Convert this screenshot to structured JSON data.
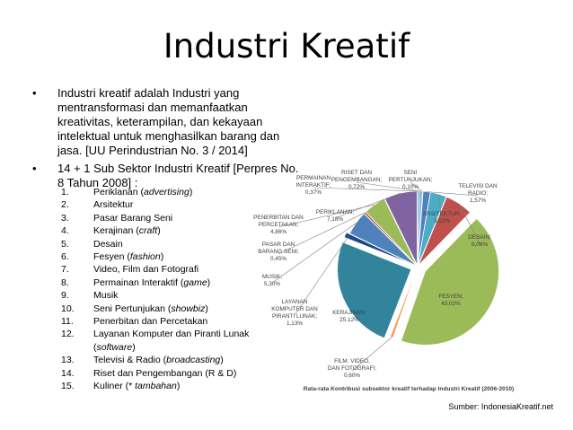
{
  "slide": {
    "title": "Industri Kreatif",
    "bullet1": "Industri kreatif adalah Industri yang mentransformasi dan memanfaatkan kreativitas, keterampilan, dan kekayaan intelektual untuk menghasilkan barang dan jasa. [UU Perindustrian No. 3 / 2014]",
    "bullet2": "14 + 1 Sub Sektor Industri Kreatif [Perpres No. 8 Tahun 2008] :",
    "bullet_symbol": "•",
    "list": [
      {
        "num": "1.",
        "text": "Periklanan (",
        "em": "advertising",
        "tail": ")"
      },
      {
        "num": "2.",
        "text": "Arsitektur",
        "em": "",
        "tail": ""
      },
      {
        "num": "3.",
        "text": "Pasar Barang Seni",
        "em": "",
        "tail": ""
      },
      {
        "num": "4.",
        "text": "Kerajinan (",
        "em": "craft",
        "tail": ")"
      },
      {
        "num": "5.",
        "text": "Desain",
        "em": "",
        "tail": ""
      },
      {
        "num": "6.",
        "text": "Fesyen (",
        "em": "fashion",
        "tail": ")"
      },
      {
        "num": "7.",
        "text": "Video, Film dan Fotografi",
        "em": "",
        "tail": ""
      },
      {
        "num": "8.",
        "text": "Permainan Interaktif (",
        "em": "game",
        "tail": ")"
      },
      {
        "num": "9.",
        "text": "Musik",
        "em": "",
        "tail": ""
      },
      {
        "num": "10.",
        "text": "Seni Pertunjukan (",
        "em": "showbiz",
        "tail": ")"
      },
      {
        "num": "11.",
        "text": "Penerbitan dan Percetakan",
        "em": "",
        "tail": ""
      },
      {
        "num": "12.",
        "text": "Layanan Komputer dan Piranti Lunak (",
        "em": "software",
        "tail": ")"
      },
      {
        "num": "13.",
        "text": "Televisi & Radio (",
        "em": "broadcasting",
        "tail": ")"
      },
      {
        "num": "14.",
        "text": "Riset dan Pengembangan (R & D)",
        "em": "",
        "tail": ""
      },
      {
        "num": "15.",
        "text": "Kuliner (* ",
        "em": "tambahan",
        "tail": ")"
      }
    ],
    "source": "Sumber: IndonesiaKreatif.net"
  },
  "chart_data": {
    "type": "pie",
    "title": "Rata-rata Kontribusi subsektor kreatif terhadap Industri Kreatif (2006-2010)",
    "slices": [
      {
        "name": "RISET DAN PENGEMBANGAN",
        "value": 0.72,
        "label": "0,72%",
        "color": "#8eb4e3"
      },
      {
        "name": "SENI PERTUNJUKAN",
        "value": 0.1,
        "label": "0,10%",
        "color": "#c0504d"
      },
      {
        "name": "TELEVISI DAN RADIO",
        "value": 1.57,
        "label": "1,57%",
        "color": "#4f81bd"
      },
      {
        "name": "ARSITEKTUR",
        "value": 3.52,
        "label": "3,52%",
        "color": "#4bacc6"
      },
      {
        "name": "DESAIN",
        "value": 6.06,
        "label": "6,06%",
        "color": "#c0504d"
      },
      {
        "name": "FESYEN",
        "value": 43.02,
        "label": "43,02%",
        "color": "#9bbb59"
      },
      {
        "name": "FILM, VIDEO, DAN FOTOGRAFI",
        "value": 0.6,
        "label": "0,60%",
        "color": "#f79646"
      },
      {
        "name": "KERAJINAN",
        "value": 25.12,
        "label": "25,12%",
        "color": "#31849b"
      },
      {
        "name": "LAYANAN KOMPUTER DAN PIRANTI LUNAK",
        "value": 1.13,
        "label": "1,13%",
        "color": "#1f497d"
      },
      {
        "name": "MUSIK",
        "value": 5.3,
        "label": "5,30%",
        "color": "#4f81bd"
      },
      {
        "name": "PASAR DAN BARANG SENI",
        "value": 0.45,
        "label": "0,45%",
        "color": "#c0504d"
      },
      {
        "name": "PENERBITAN DAN PERCETAKAN",
        "value": 4.86,
        "label": "4,86%",
        "color": "#9bbb59"
      },
      {
        "name": "PERIKLANAN",
        "value": 7.18,
        "label": "7,18%",
        "color": "#8064a2"
      },
      {
        "name": "PERMAINAN INTERAKTIF",
        "value": 0.37,
        "label": "0,37%",
        "color": "#4bacc6"
      }
    ],
    "label_lines": [
      {
        "slice": 0,
        "lines": [
          "RISET DAN",
          "PENGEMBANGAN;",
          "0,72%"
        ]
      },
      {
        "slice": 1,
        "lines": [
          "SENI",
          "PERTUNJUKAN;",
          "0,10%"
        ]
      },
      {
        "slice": 2,
        "lines": [
          "TELEVISI DAN",
          "RADIO;",
          "1,57%"
        ]
      },
      {
        "slice": 3,
        "lines": [
          "ARSITEKTUR;",
          "3,52%"
        ]
      },
      {
        "slice": 4,
        "lines": [
          "DESAIN;",
          "6,06%"
        ]
      },
      {
        "slice": 5,
        "lines": [
          "FESYEN;",
          "43,02%"
        ]
      },
      {
        "slice": 6,
        "lines": [
          "FILM, VIDEO,",
          "DAN FOTOGRAFI;",
          "0,60%"
        ]
      },
      {
        "slice": 7,
        "lines": [
          "KERAJINAN;",
          "25,12%"
        ]
      },
      {
        "slice": 8,
        "lines": [
          "LAYANAN",
          "KOMPUTER DAN",
          "PIRANTI LUNAK;",
          "1,13%"
        ]
      },
      {
        "slice": 9,
        "lines": [
          "MUSIK;",
          "5,30%"
        ]
      },
      {
        "slice": 10,
        "lines": [
          "PASAR DAN",
          "BARANG SENI;",
          "0,45%"
        ]
      },
      {
        "slice": 11,
        "lines": [
          "PENERBITAN DAN",
          "PERCETAKAN;",
          "4,86%"
        ]
      },
      {
        "slice": 12,
        "lines": [
          "PERIKLANAN;",
          "7,18%"
        ]
      },
      {
        "slice": 13,
        "lines": [
          "PERMAINAN",
          "INTERAKTIF;",
          "0,37%"
        ]
      }
    ],
    "legend": "none"
  }
}
